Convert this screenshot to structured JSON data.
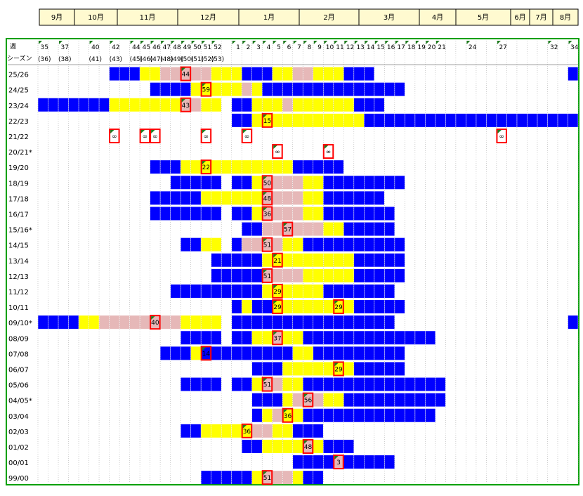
{
  "months": [
    {
      "label": "9月"
    },
    {
      "label": "10月"
    },
    {
      "label": "11月"
    },
    {
      "label": "12月"
    },
    {
      "label": "1月"
    },
    {
      "label": "2月"
    },
    {
      "label": "3月"
    },
    {
      "label": "4月"
    },
    {
      "label": "5月"
    },
    {
      "label": "6月"
    },
    {
      "label": "7月"
    },
    {
      "label": "8月"
    }
  ],
  "header": {
    "week_caption": "週",
    "season_caption": "シーズン"
  },
  "chart_data": {
    "type": "heatmap",
    "x_weeks": [
      35,
      36,
      37,
      38,
      39,
      40,
      41,
      42,
      43,
      44,
      45,
      46,
      47,
      48,
      49,
      50,
      51,
      52,
      53,
      1,
      2,
      3,
      4,
      5,
      6,
      7,
      8,
      9,
      10,
      11,
      12,
      13,
      14,
      15,
      16,
      17,
      18,
      19,
      20,
      21,
      22,
      23,
      24,
      25,
      26,
      27,
      28,
      29,
      30,
      31,
      32,
      33,
      34
    ],
    "week_labels": [
      {
        "week": 35,
        "text": "35"
      },
      {
        "week": 37,
        "text": "37"
      },
      {
        "week": 40,
        "text": "40"
      },
      {
        "week": 42,
        "text": "42"
      },
      {
        "week": 44,
        "text": "44"
      },
      {
        "week": 45,
        "text": "45"
      },
      {
        "week": 46,
        "text": "46"
      },
      {
        "week": 47,
        "text": "47"
      },
      {
        "week": 48,
        "text": "48"
      },
      {
        "week": 49,
        "text": "49"
      },
      {
        "week": 50,
        "text": "50"
      },
      {
        "week": 51,
        "text": "51"
      },
      {
        "week": 52,
        "text": "52"
      },
      {
        "week": 1,
        "text": "1"
      },
      {
        "week": 2,
        "text": "2"
      },
      {
        "week": 3,
        "text": "3"
      },
      {
        "week": 4,
        "text": "4"
      },
      {
        "week": 5,
        "text": "5"
      },
      {
        "week": 6,
        "text": "6"
      },
      {
        "week": 7,
        "text": "7"
      },
      {
        "week": 8,
        "text": "8"
      },
      {
        "week": 9,
        "text": "9"
      },
      {
        "week": 10,
        "text": "10"
      },
      {
        "week": 11,
        "text": "11"
      },
      {
        "week": 12,
        "text": "12"
      },
      {
        "week": 13,
        "text": "13"
      },
      {
        "week": 14,
        "text": "14"
      },
      {
        "week": 15,
        "text": "15"
      },
      {
        "week": 16,
        "text": "16"
      },
      {
        "week": 17,
        "text": "17"
      },
      {
        "week": 18,
        "text": "18"
      },
      {
        "week": 19,
        "text": "19"
      },
      {
        "week": 20,
        "text": "20"
      },
      {
        "week": 21,
        "text": "21"
      },
      {
        "week": 24,
        "text": "24"
      },
      {
        "week": 27,
        "text": "27"
      },
      {
        "week": 32,
        "text": "32"
      },
      {
        "week": 34,
        "text": "34"
      }
    ],
    "season_week_labels": [
      {
        "week": 35,
        "text": "(36)"
      },
      {
        "week": 37,
        "text": "(38)"
      },
      {
        "week": 40,
        "text": "(41)"
      },
      {
        "week": 42,
        "text": "(43)"
      },
      {
        "week": 44,
        "text": "(45)"
      },
      {
        "week": 45,
        "text": "(46)"
      },
      {
        "week": 46,
        "text": "(47)"
      },
      {
        "week": 47,
        "text": "(48)"
      },
      {
        "week": 48,
        "text": "(49)"
      },
      {
        "week": 49,
        "text": "(50)"
      },
      {
        "week": 50,
        "text": "(51)"
      },
      {
        "week": 51,
        "text": "(52)"
      },
      {
        "week": 52,
        "text": "(53)"
      }
    ],
    "colors": {
      "blue": "#0000ff",
      "yellow": "#ffff00",
      "pink": "#e6b8b8",
      "peak_border": "#ff0000",
      "frame": "#00a000"
    },
    "rows": [
      {
        "season": "25/26",
        "segments": [
          [
            42,
            44,
            "blue"
          ],
          [
            45,
            46,
            "yellow"
          ],
          [
            47,
            51,
            "pink"
          ],
          [
            52,
            1,
            "yellow"
          ],
          [
            2,
            4,
            "blue"
          ],
          [
            5,
            6,
            "yellow"
          ],
          [
            7,
            8,
            "pink"
          ],
          [
            9,
            11,
            "yellow"
          ],
          [
            12,
            14,
            "blue"
          ],
          [
            34,
            34,
            "blue"
          ]
        ],
        "peaks": [
          {
            "week": 49,
            "text": "44"
          }
        ]
      },
      {
        "season": "24/25",
        "segments": [
          [
            46,
            49,
            "blue"
          ],
          [
            50,
            51,
            "yellow"
          ],
          [
            52,
            1,
            "yellow"
          ],
          [
            2,
            2,
            "pink"
          ],
          [
            3,
            3,
            "yellow"
          ],
          [
            4,
            17,
            "blue"
          ]
        ],
        "peaks": [
          {
            "week": 51,
            "text": "59"
          }
        ]
      },
      {
        "season": "23/24",
        "segments": [
          [
            35,
            41,
            "blue"
          ],
          [
            42,
            48,
            "yellow"
          ],
          [
            49,
            50,
            "pink"
          ],
          [
            51,
            52,
            "yellow"
          ],
          [
            1,
            2,
            "blue"
          ],
          [
            3,
            5,
            "yellow"
          ],
          [
            6,
            6,
            "pink"
          ],
          [
            7,
            12,
            "yellow"
          ],
          [
            13,
            15,
            "blue"
          ]
        ],
        "peaks": [
          {
            "week": 49,
            "text": "43"
          }
        ]
      },
      {
        "season": "22/23",
        "segments": [
          [
            1,
            2,
            "blue"
          ],
          [
            3,
            4,
            "yellow"
          ],
          [
            5,
            13,
            "yellow"
          ],
          [
            14,
            34,
            "blue"
          ]
        ],
        "peaks": [
          {
            "week": 4,
            "text": "15"
          }
        ]
      },
      {
        "season": "21/22",
        "segments": [],
        "peaks": [
          {
            "week": 42,
            "text": "∞"
          },
          {
            "week": 45,
            "text": "∞"
          },
          {
            "week": 46,
            "text": "∞"
          },
          {
            "week": 51,
            "text": "∞"
          },
          {
            "week": 2,
            "text": "∞"
          },
          {
            "week": 27,
            "text": "∞"
          }
        ]
      },
      {
        "season": "20/21*",
        "segments": [],
        "peaks": [
          {
            "week": 5,
            "text": "∞"
          },
          {
            "week": 10,
            "text": "∞"
          }
        ]
      },
      {
        "season": "19/20",
        "segments": [
          [
            46,
            48,
            "blue"
          ],
          [
            49,
            50,
            "yellow"
          ],
          [
            51,
            6,
            "yellow"
          ],
          [
            7,
            11,
            "blue"
          ]
        ],
        "peaks": [
          {
            "week": 51,
            "text": "22"
          }
        ]
      },
      {
        "season": "18/19",
        "segments": [
          [
            48,
            52,
            "blue"
          ],
          [
            1,
            2,
            "blue"
          ],
          [
            3,
            3,
            "yellow"
          ],
          [
            4,
            7,
            "pink"
          ],
          [
            8,
            9,
            "yellow"
          ],
          [
            10,
            17,
            "blue"
          ]
        ],
        "peaks": [
          {
            "week": 4,
            "text": "50"
          }
        ]
      },
      {
        "season": "17/18",
        "segments": [
          [
            46,
            50,
            "blue"
          ],
          [
            51,
            1,
            "yellow"
          ],
          [
            2,
            3,
            "yellow"
          ],
          [
            4,
            7,
            "pink"
          ],
          [
            8,
            9,
            "yellow"
          ],
          [
            10,
            15,
            "blue"
          ]
        ],
        "peaks": [
          {
            "week": 4,
            "text": "48"
          }
        ]
      },
      {
        "season": "16/17",
        "segments": [
          [
            46,
            52,
            "blue"
          ],
          [
            1,
            2,
            "blue"
          ],
          [
            3,
            3,
            "yellow"
          ],
          [
            4,
            7,
            "pink"
          ],
          [
            8,
            9,
            "yellow"
          ],
          [
            10,
            16,
            "blue"
          ]
        ],
        "peaks": [
          {
            "week": 4,
            "text": "36"
          }
        ]
      },
      {
        "season": "15/16*",
        "segments": [
          [
            2,
            3,
            "blue"
          ],
          [
            4,
            6,
            "pink"
          ],
          [
            7,
            9,
            "pink"
          ],
          [
            10,
            11,
            "yellow"
          ],
          [
            12,
            16,
            "blue"
          ]
        ],
        "peaks": [
          {
            "week": 6,
            "text": "57"
          }
        ]
      },
      {
        "season": "14/15",
        "segments": [
          [
            49,
            50,
            "blue"
          ],
          [
            51,
            52,
            "yellow"
          ],
          [
            1,
            1,
            "blue"
          ],
          [
            2,
            5,
            "pink"
          ],
          [
            6,
            7,
            "yellow"
          ],
          [
            8,
            17,
            "blue"
          ]
        ],
        "peaks": [
          {
            "week": 4,
            "text": "51"
          }
        ]
      },
      {
        "season": "13/14",
        "segments": [
          [
            52,
            3,
            "blue"
          ],
          [
            4,
            4,
            "yellow"
          ],
          [
            5,
            7,
            "yellow"
          ],
          [
            8,
            12,
            "yellow"
          ],
          [
            13,
            17,
            "blue"
          ]
        ],
        "peaks": [
          {
            "week": 5,
            "text": "21"
          }
        ]
      },
      {
        "season": "12/13",
        "segments": [
          [
            52,
            3,
            "blue"
          ],
          [
            4,
            7,
            "pink"
          ],
          [
            8,
            12,
            "yellow"
          ],
          [
            13,
            17,
            "blue"
          ]
        ],
        "peaks": [
          {
            "week": 4,
            "text": "51"
          }
        ]
      },
      {
        "season": "11/12",
        "segments": [
          [
            48,
            1,
            "blue"
          ],
          [
            2,
            3,
            "blue"
          ],
          [
            4,
            9,
            "yellow"
          ],
          [
            10,
            16,
            "blue"
          ]
        ],
        "peaks": [
          {
            "week": 5,
            "text": "29"
          }
        ]
      },
      {
        "season": "10/11",
        "segments": [
          [
            1,
            1,
            "blue"
          ],
          [
            2,
            2,
            "yellow"
          ],
          [
            3,
            4,
            "blue"
          ],
          [
            5,
            12,
            "yellow"
          ],
          [
            13,
            17,
            "blue"
          ]
        ],
        "peaks": [
          {
            "week": 5,
            "text": "29"
          },
          {
            "week": 11,
            "text": "29"
          }
        ]
      },
      {
        "season": "09/10*",
        "segments": [
          [
            35,
            38,
            "blue"
          ],
          [
            39,
            40,
            "yellow"
          ],
          [
            41,
            48,
            "pink"
          ],
          [
            49,
            52,
            "yellow"
          ],
          [
            1,
            16,
            "blue"
          ],
          [
            34,
            34,
            "blue"
          ]
        ],
        "peaks": [
          {
            "week": 46,
            "text": "40"
          }
        ]
      },
      {
        "season": "08/09",
        "segments": [
          [
            49,
            52,
            "blue"
          ],
          [
            1,
            2,
            "blue"
          ],
          [
            3,
            4,
            "yellow"
          ],
          [
            5,
            5,
            "pink"
          ],
          [
            6,
            7,
            "yellow"
          ],
          [
            8,
            20,
            "blue"
          ]
        ],
        "peaks": [
          {
            "week": 5,
            "text": "37"
          }
        ]
      },
      {
        "season": "07/08",
        "segments": [
          [
            47,
            49,
            "blue"
          ],
          [
            50,
            50,
            "yellow"
          ],
          [
            51,
            1,
            "blue"
          ],
          [
            2,
            6,
            "blue"
          ],
          [
            7,
            8,
            "yellow"
          ],
          [
            9,
            17,
            "blue"
          ]
        ],
        "peaks": [
          {
            "week": 51,
            "text": "14"
          }
        ]
      },
      {
        "season": "06/07",
        "segments": [
          [
            3,
            5,
            "blue"
          ],
          [
            6,
            10,
            "yellow"
          ],
          [
            11,
            12,
            "yellow"
          ],
          [
            13,
            17,
            "blue"
          ]
        ],
        "peaks": [
          {
            "week": 11,
            "text": "29"
          }
        ]
      },
      {
        "season": "05/06",
        "segments": [
          [
            49,
            52,
            "blue"
          ],
          [
            1,
            2,
            "blue"
          ],
          [
            3,
            3,
            "yellow"
          ],
          [
            4,
            5,
            "pink"
          ],
          [
            6,
            7,
            "yellow"
          ],
          [
            8,
            21,
            "blue"
          ]
        ],
        "peaks": [
          {
            "week": 4,
            "text": "51"
          }
        ]
      },
      {
        "season": "04/05*",
        "segments": [
          [
            3,
            5,
            "blue"
          ],
          [
            6,
            6,
            "yellow"
          ],
          [
            7,
            9,
            "pink"
          ],
          [
            10,
            11,
            "yellow"
          ],
          [
            12,
            21,
            "blue"
          ]
        ],
        "peaks": [
          {
            "week": 8,
            "text": "56"
          }
        ]
      },
      {
        "season": "03/04",
        "segments": [
          [
            3,
            3,
            "blue"
          ],
          [
            4,
            4,
            "yellow"
          ],
          [
            5,
            5,
            "pink"
          ],
          [
            6,
            7,
            "yellow"
          ],
          [
            8,
            20,
            "blue"
          ]
        ],
        "peaks": [
          {
            "week": 6,
            "text": "36"
          }
        ]
      },
      {
        "season": "02/03",
        "segments": [
          [
            49,
            50,
            "blue"
          ],
          [
            51,
            2,
            "yellow"
          ],
          [
            3,
            4,
            "pink"
          ],
          [
            5,
            6,
            "yellow"
          ],
          [
            7,
            9,
            "blue"
          ]
        ],
        "peaks": [
          {
            "week": 2,
            "text": "36"
          }
        ]
      },
      {
        "season": "01/02",
        "segments": [
          [
            2,
            3,
            "blue"
          ],
          [
            4,
            7,
            "yellow"
          ],
          [
            8,
            8,
            "pink"
          ],
          [
            9,
            9,
            "yellow"
          ],
          [
            10,
            12,
            "blue"
          ]
        ],
        "peaks": [
          {
            "week": 8,
            "text": "48"
          }
        ]
      },
      {
        "season": "00/01",
        "segments": [
          [
            7,
            10,
            "blue"
          ],
          [
            11,
            11,
            "pink"
          ],
          [
            12,
            16,
            "blue"
          ]
        ],
        "peaks": [
          {
            "week": 11,
            "text": "3"
          }
        ]
      },
      {
        "season": "99/00",
        "segments": [
          [
            51,
            2,
            "blue"
          ],
          [
            3,
            3,
            "yellow"
          ],
          [
            4,
            6,
            "pink"
          ],
          [
            7,
            7,
            "yellow"
          ],
          [
            8,
            9,
            "blue"
          ]
        ],
        "peaks": [
          {
            "week": 4,
            "text": "51"
          }
        ]
      }
    ]
  }
}
